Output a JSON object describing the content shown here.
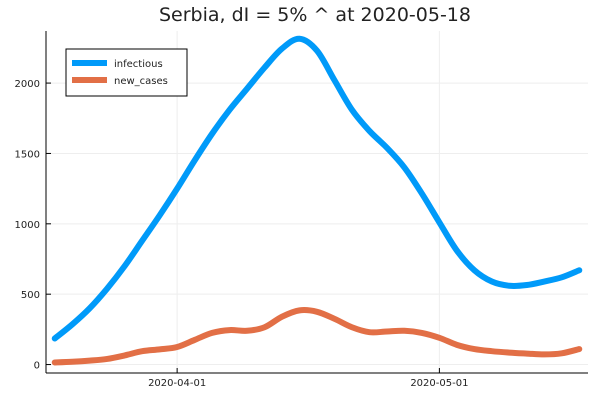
{
  "chart_data": {
    "type": "line",
    "title": "Serbia,  dI = 5% ^ at 2020-05-18",
    "xlabel": "",
    "ylabel": "",
    "x_ticks": [
      "2020-04-01",
      "2020-05-01"
    ],
    "y_ticks": [
      0,
      500,
      1000,
      1500,
      2000
    ],
    "xlim": [
      "2020-03-17",
      "2020-05-18"
    ],
    "ylim": [
      -60,
      2370
    ],
    "grid": true,
    "legend_position": "top-left",
    "series": [
      {
        "name": "infectious",
        "color": "#009af9",
        "x": [
          "2020-03-18",
          "2020-03-20",
          "2020-03-22",
          "2020-03-24",
          "2020-03-26",
          "2020-03-28",
          "2020-03-30",
          "2020-04-01",
          "2020-04-03",
          "2020-04-05",
          "2020-04-07",
          "2020-04-09",
          "2020-04-11",
          "2020-04-13",
          "2020-04-15",
          "2020-04-17",
          "2020-04-19",
          "2020-04-21",
          "2020-04-23",
          "2020-04-25",
          "2020-04-27",
          "2020-04-29",
          "2020-05-01",
          "2020-05-03",
          "2020-05-05",
          "2020-05-07",
          "2020-05-09",
          "2020-05-11",
          "2020-05-13",
          "2020-05-15",
          "2020-05-17"
        ],
        "values": [
          185,
          285,
          400,
          540,
          700,
          880,
          1060,
          1250,
          1450,
          1640,
          1810,
          1960,
          2110,
          2245,
          2315,
          2230,
          2020,
          1810,
          1660,
          1540,
          1400,
          1215,
          1010,
          810,
          670,
          590,
          560,
          565,
          590,
          620,
          670
        ]
      },
      {
        "name": "new_cases",
        "color": "#e26f46",
        "x": [
          "2020-03-18",
          "2020-03-20",
          "2020-03-22",
          "2020-03-24",
          "2020-03-26",
          "2020-03-28",
          "2020-03-30",
          "2020-04-01",
          "2020-04-03",
          "2020-04-05",
          "2020-04-07",
          "2020-04-09",
          "2020-04-11",
          "2020-04-13",
          "2020-04-15",
          "2020-04-17",
          "2020-04-19",
          "2020-04-21",
          "2020-04-23",
          "2020-04-25",
          "2020-04-27",
          "2020-04-29",
          "2020-05-01",
          "2020-05-03",
          "2020-05-05",
          "2020-05-07",
          "2020-05-09",
          "2020-05-11",
          "2020-05-13",
          "2020-05-15",
          "2020-05-17"
        ],
        "values": [
          15,
          20,
          28,
          40,
          65,
          95,
          108,
          125,
          175,
          225,
          245,
          240,
          265,
          340,
          385,
          375,
          325,
          265,
          230,
          235,
          240,
          225,
          190,
          140,
          110,
          95,
          85,
          78,
          72,
          80,
          110
        ]
      }
    ]
  }
}
